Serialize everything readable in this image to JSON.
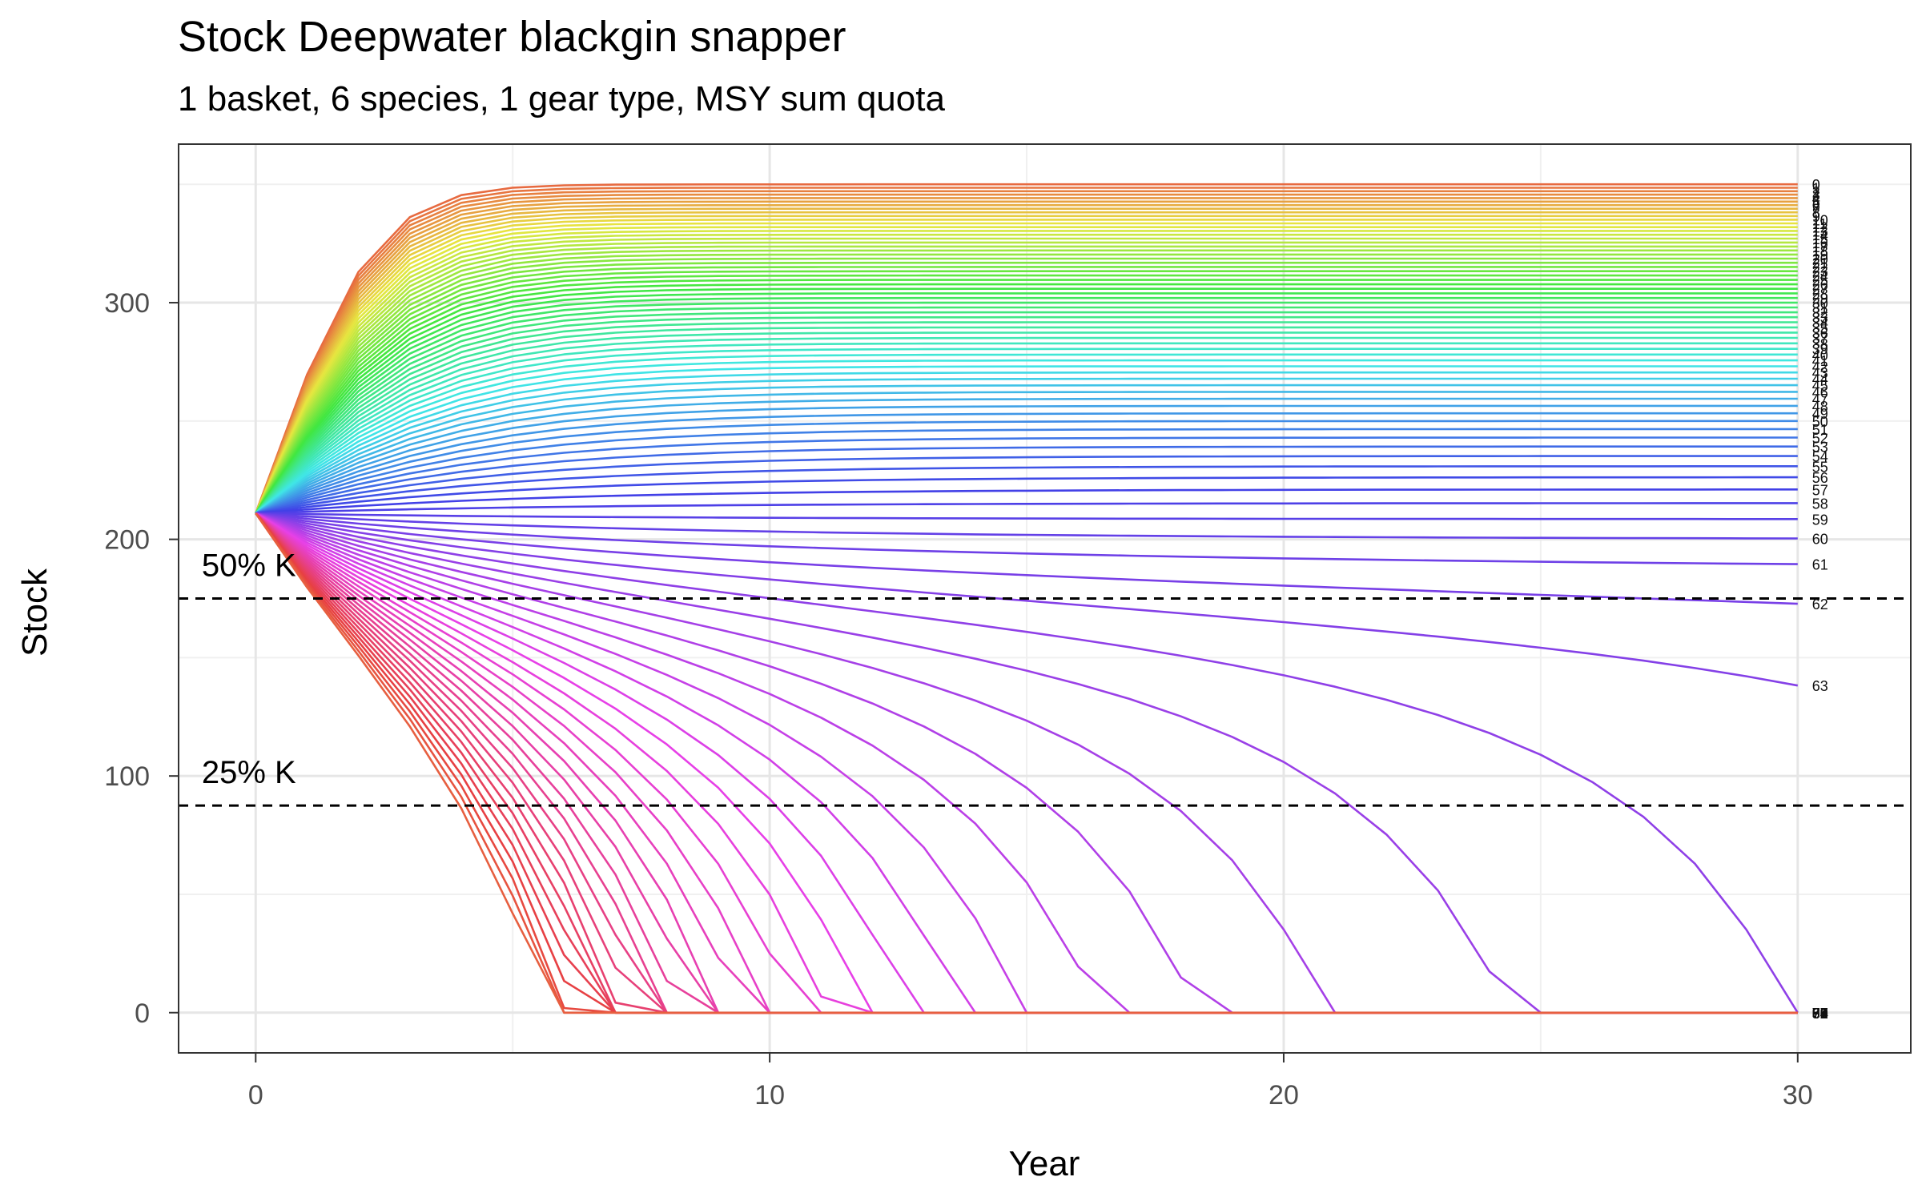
{
  "chart_data": {
    "type": "line",
    "title": "Stock Deepwater blackgin snapper",
    "subtitle": "1 basket, 6 species, 1 gear type, MSY sum quota",
    "xlabel": "Year",
    "ylabel": "Stock",
    "xlim": [
      -1.5,
      32.2
    ],
    "ylim": [
      -17,
      367
    ],
    "xticks": [
      0,
      10,
      20,
      30
    ],
    "yticks": [
      0,
      100,
      200,
      300
    ],
    "grid": true,
    "legend": "none",
    "K": 350,
    "reference_lines": [
      {
        "label": "50% K",
        "y": 175
      },
      {
        "label": "25% K",
        "y": 87.5
      }
    ],
    "series_model": {
      "x": [
        0,
        1,
        2,
        3,
        4,
        5,
        6,
        7,
        8,
        9,
        10,
        11,
        12,
        13,
        14,
        15,
        16,
        17,
        18,
        19,
        20,
        21,
        22,
        23,
        24,
        25,
        26,
        27,
        28,
        29,
        30
      ],
      "start_value": 211,
      "growth_rate": 0.7,
      "quota_min": 0,
      "quota_step": 1,
      "count": 91,
      "note_labels": "series are named 0 through 90 by end-of-line labels"
    },
    "end_labels": [
      "0",
      "1",
      "2",
      "3",
      "4",
      "5",
      "6",
      "7",
      "8",
      "9",
      "10",
      "11",
      "12",
      "13",
      "14",
      "15",
      "16",
      "17",
      "18",
      "19",
      "20",
      "21",
      "22",
      "23",
      "24",
      "25",
      "26",
      "27",
      "28",
      "29",
      "30",
      "31",
      "32",
      "33",
      "34",
      "35",
      "36",
      "37",
      "38",
      "39",
      "40",
      "41",
      "42",
      "43",
      "44",
      "45",
      "46",
      "47",
      "48",
      "49",
      "50",
      "51",
      "52",
      "53",
      "54",
      "55",
      "56",
      "57",
      "58",
      "59",
      "60",
      "61",
      "62",
      "63",
      "64",
      "65",
      "66",
      "67",
      "68",
      "69",
      "70",
      "71",
      "72",
      "73",
      "74",
      "75",
      "76",
      "77",
      "78",
      "79",
      "80",
      "81",
      "82",
      "83",
      "84",
      "85",
      "86",
      "87",
      "88",
      "89",
      "90"
    ]
  }
}
